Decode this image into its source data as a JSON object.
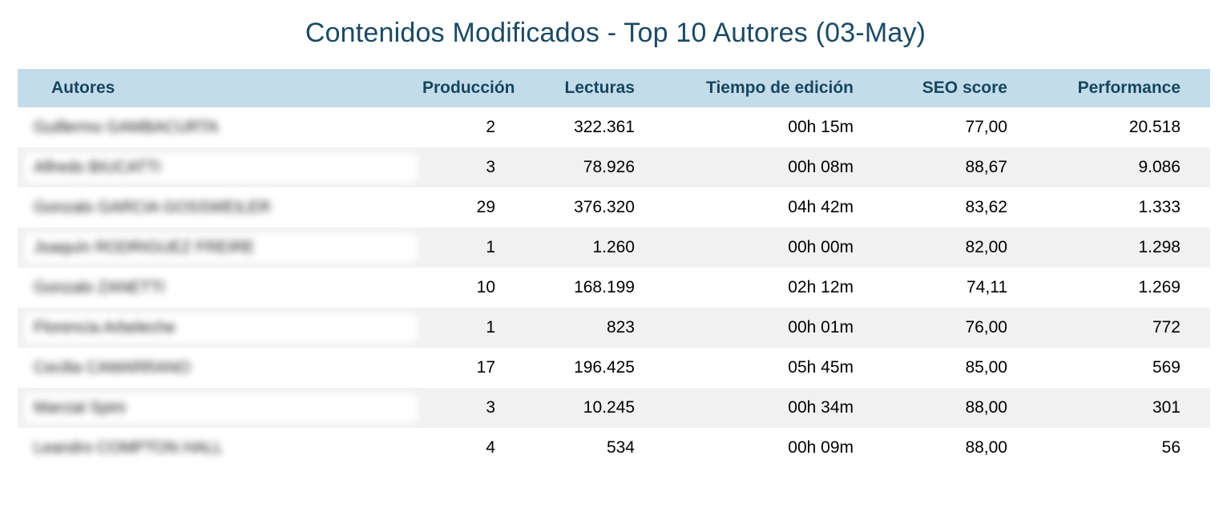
{
  "page": {
    "title": "Contenidos Modificados - Top 10 Autores (03-May)"
  },
  "colors": {
    "title_text": "#1b4a64",
    "header_bg": "#c3dcea",
    "header_text": "#17465f",
    "row_stripe": "#f0f1f0",
    "row_text": "#000000",
    "background": "#ffffff"
  },
  "chart_data": {
    "type": "table",
    "title": "Contenidos Modificados - Top 10 Autores (03-May)",
    "columns": [
      "Autores",
      "Producción",
      "Lecturas",
      "Tiempo de edición",
      "SEO score",
      "Performance"
    ],
    "author_names_blurred": true,
    "rows": [
      {
        "autor": "Guillermo GAMBACURTA",
        "produccion": "2",
        "lecturas": "322.361",
        "tiempo_de_edicion": "00h 15m",
        "seo_score": "77,00",
        "performance": "20.518"
      },
      {
        "autor": "Alfredo BIUCATTI",
        "produccion": "3",
        "lecturas": "78.926",
        "tiempo_de_edicion": "00h 08m",
        "seo_score": "88,67",
        "performance": "9.086"
      },
      {
        "autor": "Gonzalo GARCIA GOSSWEILER",
        "produccion": "29",
        "lecturas": "376.320",
        "tiempo_de_edicion": "04h 42m",
        "seo_score": "83,62",
        "performance": "1.333"
      },
      {
        "autor": "Joaquín RODRIGUEZ FREIRE",
        "produccion": "1",
        "lecturas": "1.260",
        "tiempo_de_edicion": "00h 00m",
        "seo_score": "82,00",
        "performance": "1.298"
      },
      {
        "autor": "Gonzalo ZANETTI",
        "produccion": "10",
        "lecturas": "168.199",
        "tiempo_de_edicion": "02h 12m",
        "seo_score": "74,11",
        "performance": "1.269"
      },
      {
        "autor": "Florencia Arbeleche",
        "produccion": "1",
        "lecturas": "823",
        "tiempo_de_edicion": "00h 01m",
        "seo_score": "76,00",
        "performance": "772"
      },
      {
        "autor": "Cecilia CAMARRANO",
        "produccion": "17",
        "lecturas": "196.425",
        "tiempo_de_edicion": "05h 45m",
        "seo_score": "85,00",
        "performance": "569"
      },
      {
        "autor": "Marcial Spini",
        "produccion": "3",
        "lecturas": "10.245",
        "tiempo_de_edicion": "00h 34m",
        "seo_score": "88,00",
        "performance": "301"
      },
      {
        "autor": "Leandro COMPTON HALL",
        "produccion": "4",
        "lecturas": "534",
        "tiempo_de_edicion": "00h 09m",
        "seo_score": "88,00",
        "performance": "56"
      }
    ]
  }
}
